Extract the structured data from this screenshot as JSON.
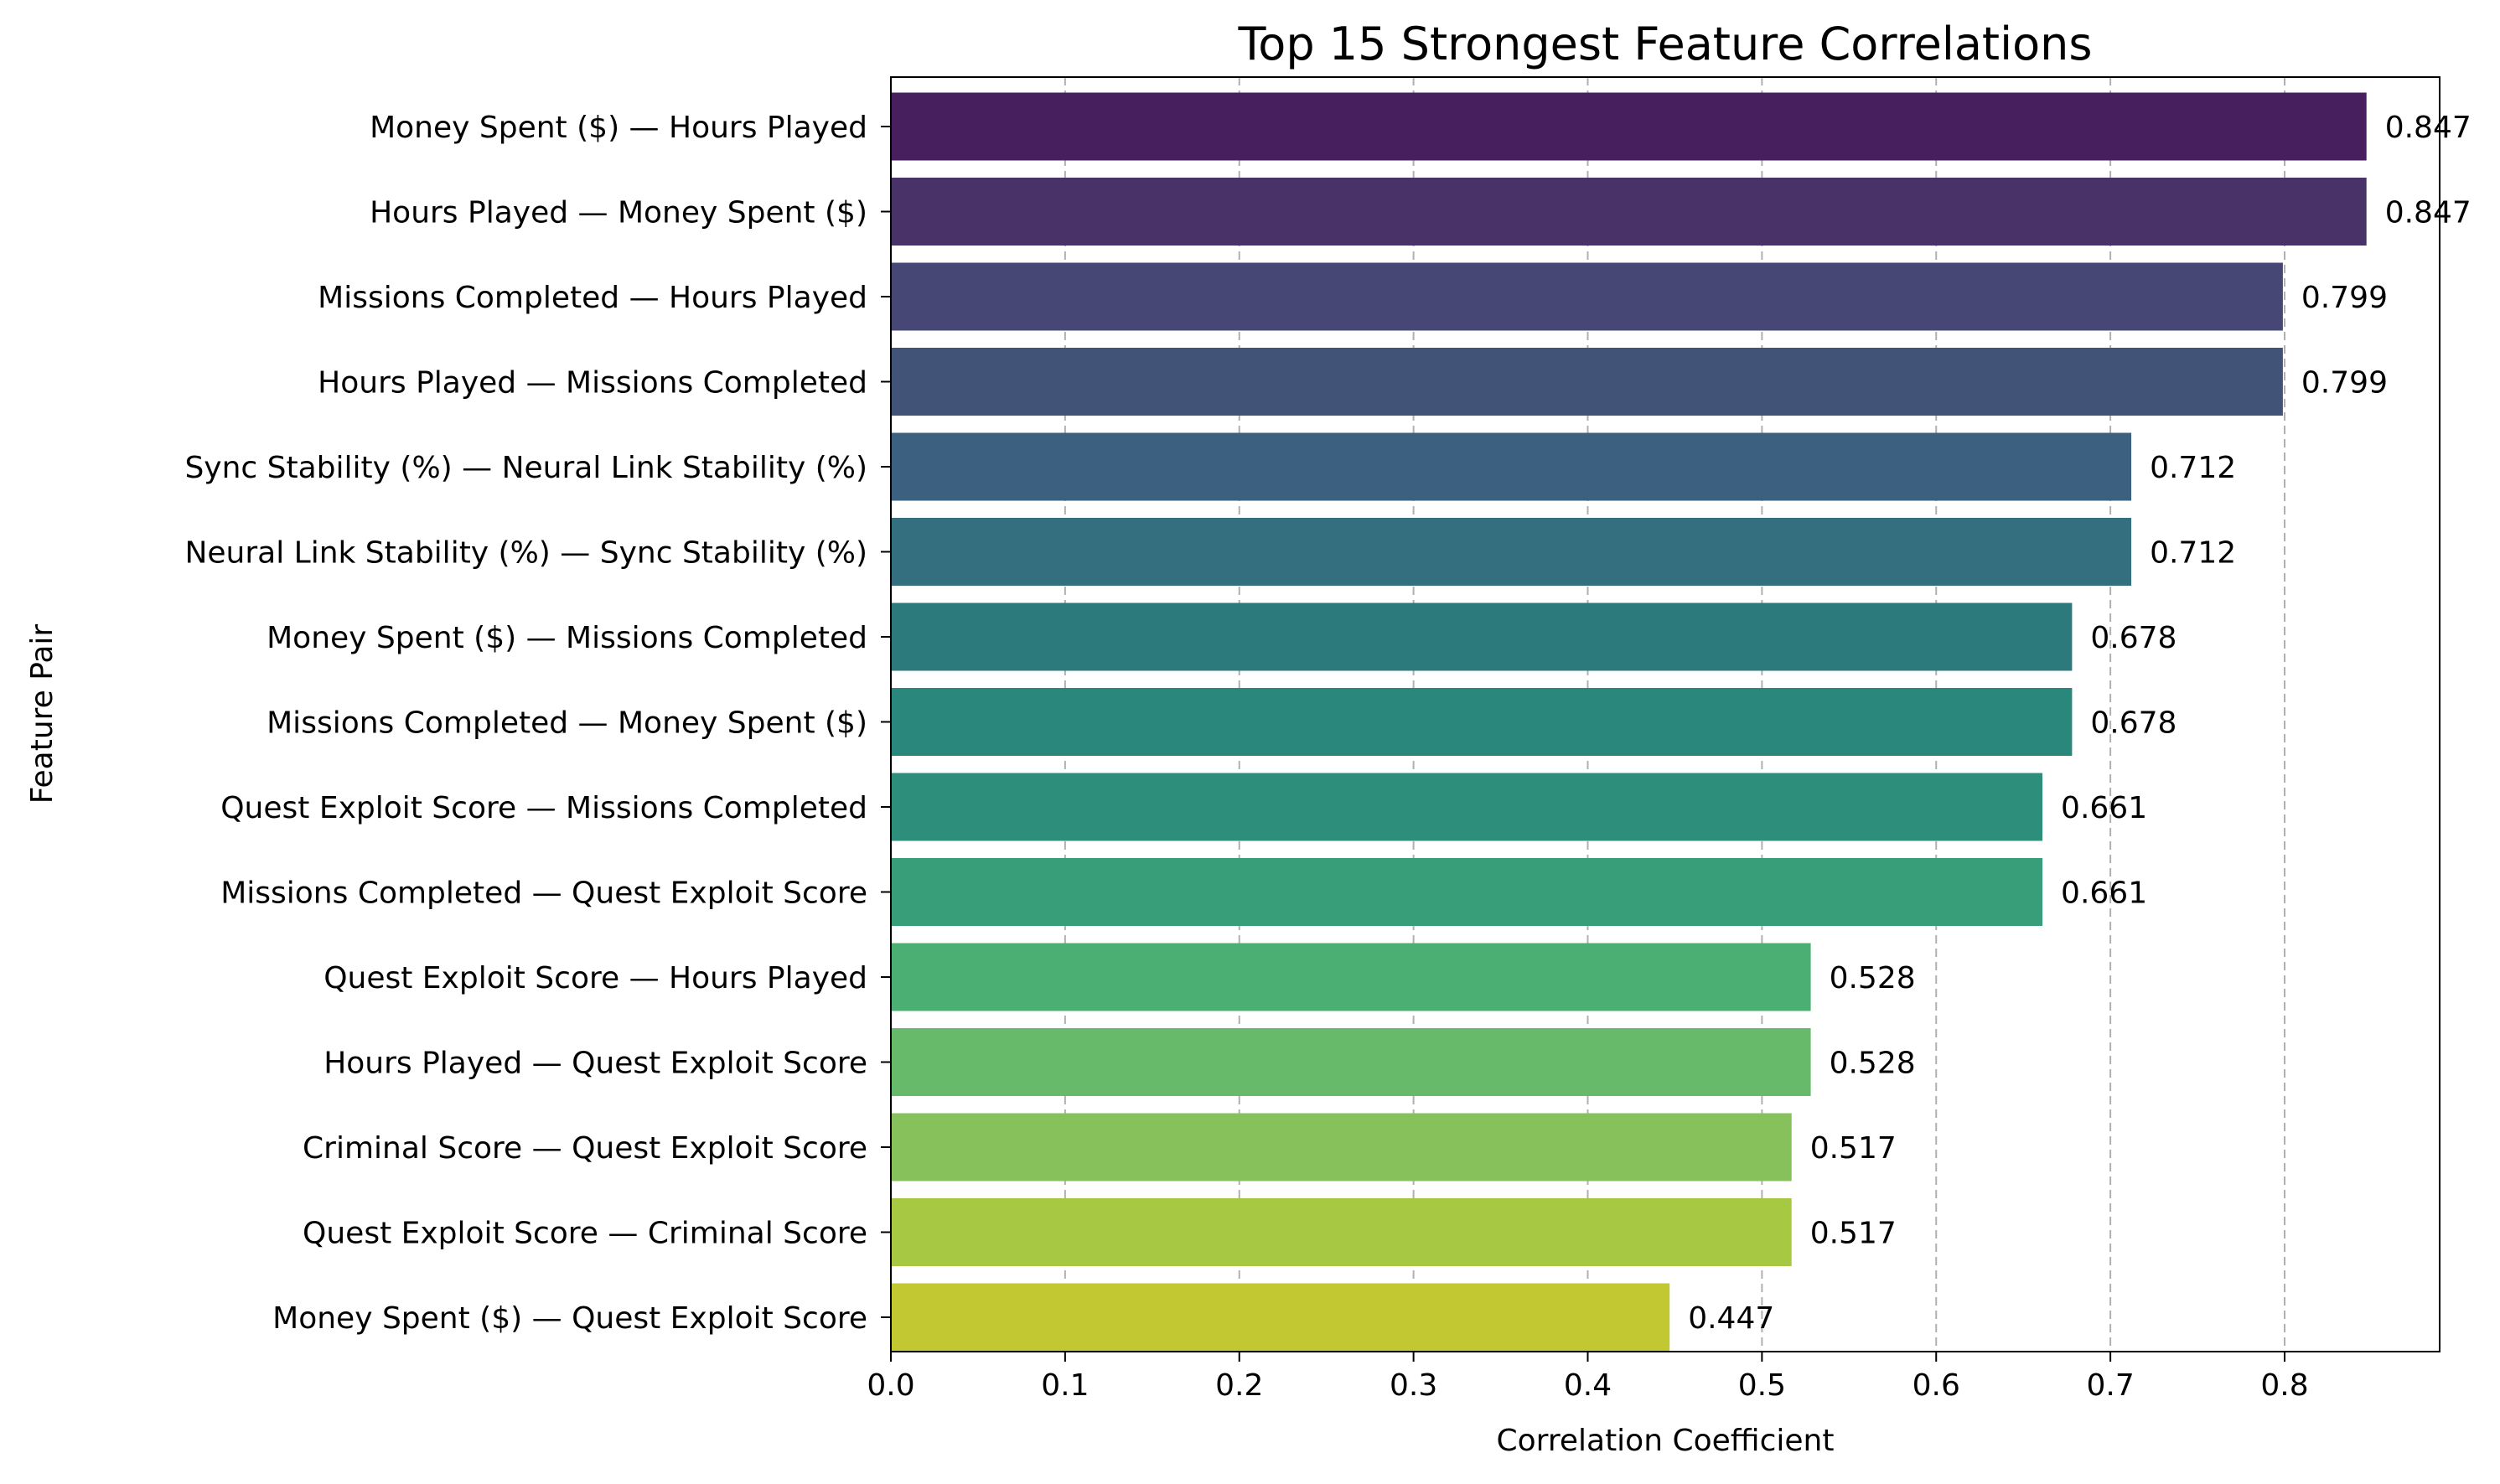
{
  "chart_data": {
    "type": "bar",
    "orientation": "horizontal",
    "title": "Top 15 Strongest Feature Correlations",
    "xlabel": "Correlation Coefficient",
    "ylabel": "Feature Pair",
    "xlim": [
      0,
      0.889
    ],
    "xticks": [
      "0.0",
      "0.1",
      "0.2",
      "0.3",
      "0.4",
      "0.5",
      "0.6",
      "0.7",
      "0.8"
    ],
    "grid": "x-axis dashed",
    "colormap": "viridis",
    "categories": [
      "Money Spent ($) — Hours Played",
      "Hours Played — Money Spent ($)",
      "Missions Completed — Hours Played",
      "Hours Played — Missions Completed",
      "Sync Stability (%) — Neural Link Stability (%)",
      "Neural Link Stability (%) — Sync Stability (%)",
      "Money Spent ($) — Missions Completed",
      "Missions Completed — Money Spent ($)",
      "Quest Exploit Score — Missions Completed",
      "Missions Completed — Quest Exploit Score",
      "Quest Exploit Score — Hours Played",
      "Hours Played — Quest Exploit Score",
      "Criminal Score — Quest Exploit Score",
      "Quest Exploit Score — Criminal Score",
      "Money Spent ($) — Quest Exploit Score"
    ],
    "values": [
      0.847,
      0.847,
      0.799,
      0.799,
      0.712,
      0.712,
      0.678,
      0.678,
      0.661,
      0.661,
      0.528,
      0.528,
      0.517,
      0.517,
      0.447
    ],
    "value_labels": [
      "0.847",
      "0.847",
      "0.799",
      "0.799",
      "0.712",
      "0.712",
      "0.678",
      "0.678",
      "0.661",
      "0.661",
      "0.528",
      "0.528",
      "0.517",
      "0.517",
      "0.447"
    ],
    "colors": [
      "#471e5e",
      "#483267",
      "#474775",
      "#415478",
      "#3c6180",
      "#346f80",
      "#2d7a7d",
      "#2a877b",
      "#2d8e7b",
      "#389e79",
      "#4baf73",
      "#67ba6a",
      "#86c15b",
      "#a6c842",
      "#c1c831"
    ]
  }
}
